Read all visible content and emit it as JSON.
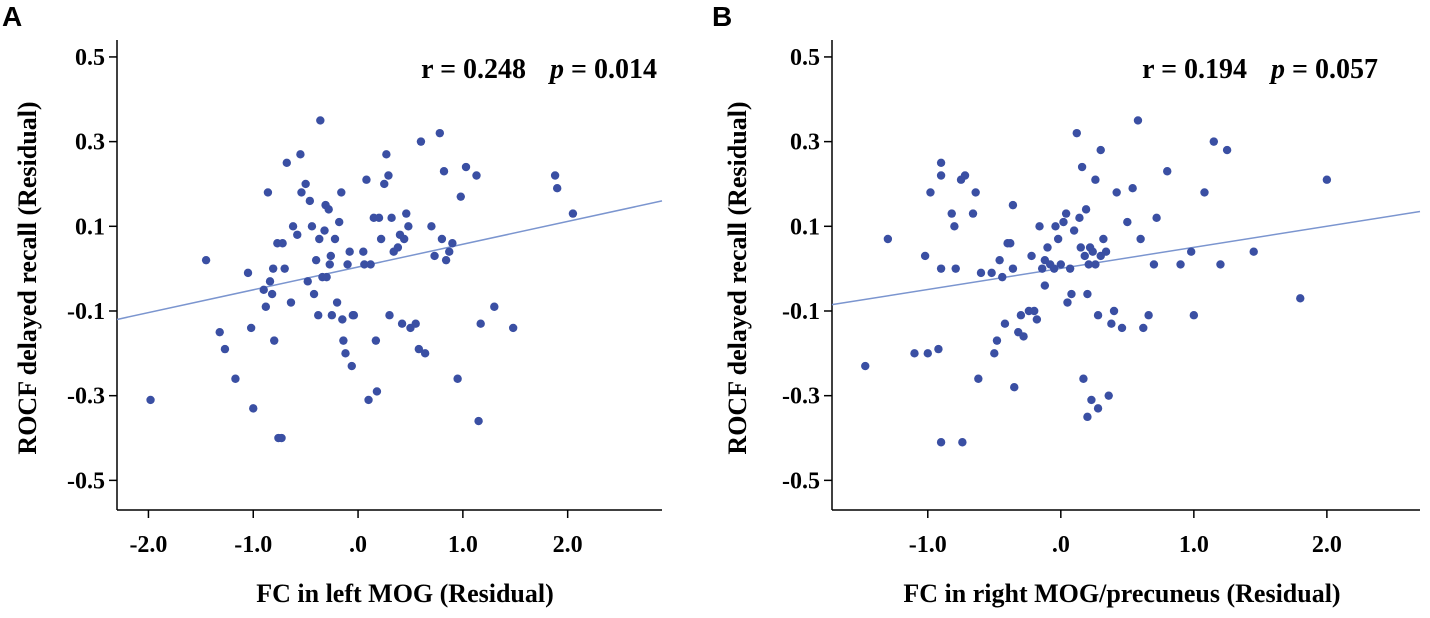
{
  "figure": {
    "panels": [
      {
        "letter": "A",
        "xlabel": "FC in left MOG (Residual)",
        "ylabel": "ROCF delayed recall (Residual)",
        "stat_r": "r = 0.248",
        "stat_p_symbol": "p",
        "stat_p_value": "= 0.014"
      },
      {
        "letter": "B",
        "xlabel": "FC in right MOG/precuneus (Residual)",
        "ylabel": "ROCF delayed recall (Residual)",
        "stat_r": "r = 0.194",
        "stat_p_symbol": "p",
        "stat_p_value": "= 0.057"
      }
    ]
  },
  "colors": {
    "point": "#3a4fa3",
    "fit_line": "#7b95cf",
    "axis": "#000000",
    "text": "#000000"
  },
  "chart_data": [
    {
      "type": "scatter",
      "title": "A",
      "xlabel": "FC in left MOG (Residual)",
      "ylabel": "ROCF delayed recall (Residual)",
      "xlim": [
        -2.3,
        2.9
      ],
      "ylim": [
        -0.57,
        0.54
      ],
      "xticks": [
        -2.0,
        -1.0,
        0.0,
        1.0,
        2.0
      ],
      "xtick_labels": [
        "-2.0",
        "-1.0",
        ".0",
        "1.0",
        "2.0"
      ],
      "yticks": [
        0.5,
        0.3,
        0.1,
        -0.1,
        -0.3,
        -0.5
      ],
      "ytick_labels": [
        "0.5",
        "0.3",
        "0.1",
        "-0.1",
        "-0.3",
        "-0.5"
      ],
      "annotation": "r = 0.248   p = 0.014",
      "fit_line": {
        "x": [
          -2.3,
          2.9
        ],
        "y": [
          -0.12,
          0.16
        ]
      },
      "points": [
        [
          -1.98,
          -0.31
        ],
        [
          -1.45,
          0.02
        ],
        [
          -1.32,
          -0.15
        ],
        [
          -1.27,
          -0.19
        ],
        [
          -1.17,
          -0.26
        ],
        [
          -1.05,
          -0.01
        ],
        [
          -1.02,
          -0.14
        ],
        [
          -1.0,
          -0.33
        ],
        [
          -0.9,
          -0.05
        ],
        [
          -0.88,
          -0.09
        ],
        [
          -0.86,
          0.18
        ],
        [
          -0.84,
          -0.03
        ],
        [
          -0.82,
          -0.06
        ],
        [
          -0.81,
          0.0
        ],
        [
          -0.8,
          -0.17
        ],
        [
          -0.77,
          0.06
        ],
        [
          -0.76,
          -0.4
        ],
        [
          -0.73,
          -0.4
        ],
        [
          -0.72,
          0.06
        ],
        [
          -0.7,
          0.0
        ],
        [
          -0.68,
          0.25
        ],
        [
          -0.64,
          -0.08
        ],
        [
          -0.62,
          0.1
        ],
        [
          -0.58,
          0.08
        ],
        [
          -0.55,
          0.27
        ],
        [
          -0.54,
          0.18
        ],
        [
          -0.5,
          0.2
        ],
        [
          -0.48,
          -0.03
        ],
        [
          -0.46,
          0.16
        ],
        [
          -0.44,
          0.1
        ],
        [
          -0.42,
          -0.06
        ],
        [
          -0.4,
          0.02
        ],
        [
          -0.38,
          -0.11
        ],
        [
          -0.37,
          0.07
        ],
        [
          -0.36,
          0.35
        ],
        [
          -0.34,
          -0.02
        ],
        [
          -0.32,
          0.09
        ],
        [
          -0.31,
          0.15
        ],
        [
          -0.3,
          -0.02
        ],
        [
          -0.28,
          0.14
        ],
        [
          -0.27,
          0.01
        ],
        [
          -0.26,
          0.03
        ],
        [
          -0.25,
          -0.11
        ],
        [
          -0.22,
          0.07
        ],
        [
          -0.2,
          -0.08
        ],
        [
          -0.18,
          0.11
        ],
        [
          -0.16,
          0.18
        ],
        [
          -0.15,
          -0.12
        ],
        [
          -0.14,
          -0.17
        ],
        [
          -0.12,
          -0.2
        ],
        [
          -0.1,
          0.01
        ],
        [
          -0.08,
          0.04
        ],
        [
          -0.06,
          -0.23
        ],
        [
          -0.05,
          -0.11
        ],
        [
          -0.04,
          -0.11
        ],
        [
          0.05,
          0.04
        ],
        [
          0.06,
          0.01
        ],
        [
          0.08,
          0.21
        ],
        [
          0.1,
          -0.31
        ],
        [
          0.12,
          0.01
        ],
        [
          0.15,
          0.12
        ],
        [
          0.17,
          -0.17
        ],
        [
          0.18,
          -0.29
        ],
        [
          0.2,
          0.12
        ],
        [
          0.22,
          0.07
        ],
        [
          0.25,
          0.2
        ],
        [
          0.27,
          0.27
        ],
        [
          0.29,
          0.22
        ],
        [
          0.3,
          -0.11
        ],
        [
          0.32,
          0.12
        ],
        [
          0.34,
          0.04
        ],
        [
          0.38,
          0.05
        ],
        [
          0.4,
          0.08
        ],
        [
          0.42,
          -0.13
        ],
        [
          0.44,
          0.07
        ],
        [
          0.46,
          0.13
        ],
        [
          0.48,
          0.1
        ],
        [
          0.5,
          -0.14
        ],
        [
          0.55,
          -0.13
        ],
        [
          0.58,
          -0.19
        ],
        [
          0.6,
          0.3
        ],
        [
          0.64,
          -0.2
        ],
        [
          0.7,
          0.1
        ],
        [
          0.73,
          0.03
        ],
        [
          0.78,
          0.32
        ],
        [
          0.8,
          0.07
        ],
        [
          0.82,
          0.23
        ],
        [
          0.84,
          0.02
        ],
        [
          0.87,
          0.04
        ],
        [
          0.9,
          0.06
        ],
        [
          0.95,
          -0.26
        ],
        [
          0.98,
          0.17
        ],
        [
          1.03,
          0.24
        ],
        [
          1.13,
          0.22
        ],
        [
          1.15,
          -0.36
        ],
        [
          1.17,
          -0.13
        ],
        [
          1.3,
          -0.09
        ],
        [
          1.48,
          -0.14
        ],
        [
          1.88,
          0.22
        ],
        [
          1.9,
          0.19
        ],
        [
          2.05,
          0.13
        ]
      ]
    },
    {
      "type": "scatter",
      "title": "B",
      "xlabel": "FC in right MOG/precuneus (Residual)",
      "ylabel": "ROCF delayed recall (Residual)",
      "xlim": [
        -1.72,
        2.7
      ],
      "ylim": [
        -0.57,
        0.54
      ],
      "xticks": [
        -1.0,
        0.0,
        1.0,
        2.0
      ],
      "xtick_labels": [
        "-1.0",
        ".0",
        "1.0",
        "2.0"
      ],
      "yticks": [
        0.5,
        0.3,
        0.1,
        -0.1,
        -0.3,
        -0.5
      ],
      "ytick_labels": [
        "0.5",
        "0.3",
        "0.1",
        "-0.1",
        "-0.3",
        "-0.5"
      ],
      "annotation": "r = 0.194   p = 0.057",
      "fit_line": {
        "x": [
          -1.72,
          2.7
        ],
        "y": [
          -0.085,
          0.135
        ]
      },
      "points": [
        [
          -1.47,
          -0.23
        ],
        [
          -1.3,
          0.07
        ],
        [
          -1.1,
          -0.2
        ],
        [
          -1.02,
          0.03
        ],
        [
          -1.0,
          -0.2
        ],
        [
          -0.98,
          0.18
        ],
        [
          -0.92,
          -0.19
        ],
        [
          -0.9,
          0.25
        ],
        [
          -0.9,
          0.22
        ],
        [
          -0.9,
          -0.41
        ],
        [
          -0.9,
          0.0
        ],
        [
          -0.82,
          0.13
        ],
        [
          -0.8,
          0.1
        ],
        [
          -0.79,
          0.0
        ],
        [
          -0.75,
          0.21
        ],
        [
          -0.74,
          -0.41
        ],
        [
          -0.72,
          0.22
        ],
        [
          -0.66,
          0.13
        ],
        [
          -0.64,
          0.18
        ],
        [
          -0.62,
          -0.26
        ],
        [
          -0.6,
          -0.01
        ],
        [
          -0.52,
          -0.01
        ],
        [
          -0.5,
          -0.2
        ],
        [
          -0.48,
          -0.17
        ],
        [
          -0.46,
          0.02
        ],
        [
          -0.44,
          -0.02
        ],
        [
          -0.42,
          -0.13
        ],
        [
          -0.4,
          0.06
        ],
        [
          -0.38,
          0.06
        ],
        [
          -0.36,
          0.15
        ],
        [
          -0.36,
          0.0
        ],
        [
          -0.35,
          -0.28
        ],
        [
          -0.32,
          -0.15
        ],
        [
          -0.3,
          -0.11
        ],
        [
          -0.28,
          -0.16
        ],
        [
          -0.24,
          -0.1
        ],
        [
          -0.22,
          0.03
        ],
        [
          -0.2,
          -0.1
        ],
        [
          -0.18,
          -0.12
        ],
        [
          -0.16,
          0.1
        ],
        [
          -0.14,
          0.0
        ],
        [
          -0.12,
          0.02
        ],
        [
          -0.1,
          0.05
        ],
        [
          -0.08,
          0.01
        ],
        [
          -0.05,
          0.0
        ],
        [
          -0.04,
          0.1
        ],
        [
          -0.02,
          0.07
        ],
        [
          0.0,
          0.01
        ],
        [
          0.02,
          0.11
        ],
        [
          0.04,
          0.13
        ],
        [
          0.05,
          -0.08
        ],
        [
          0.07,
          0.0
        ],
        [
          0.08,
          -0.06
        ],
        [
          0.1,
          0.09
        ],
        [
          0.12,
          0.32
        ],
        [
          0.14,
          0.12
        ],
        [
          0.15,
          0.05
        ],
        [
          0.16,
          0.24
        ],
        [
          0.17,
          -0.26
        ],
        [
          0.18,
          0.03
        ],
        [
          0.19,
          0.14
        ],
        [
          0.2,
          -0.06
        ],
        [
          0.21,
          0.01
        ],
        [
          0.22,
          0.05
        ],
        [
          0.23,
          -0.31
        ],
        [
          0.24,
          0.04
        ],
        [
          0.26,
          0.01
        ],
        [
          0.28,
          -0.11
        ],
        [
          0.3,
          0.28
        ],
        [
          0.32,
          0.07
        ],
        [
          0.34,
          0.04
        ],
        [
          0.36,
          -0.3
        ],
        [
          0.38,
          -0.13
        ],
        [
          0.4,
          -0.1
        ],
        [
          0.42,
          0.18
        ],
        [
          0.46,
          -0.14
        ],
        [
          0.5,
          0.11
        ],
        [
          0.54,
          0.19
        ],
        [
          0.58,
          0.35
        ],
        [
          0.6,
          0.07
        ],
        [
          0.62,
          -0.14
        ],
        [
          0.66,
          -0.11
        ],
        [
          0.7,
          0.01
        ],
        [
          0.72,
          0.12
        ],
        [
          0.8,
          0.23
        ],
        [
          0.9,
          0.01
        ],
        [
          0.98,
          0.04
        ],
        [
          1.0,
          -0.11
        ],
        [
          1.08,
          0.18
        ],
        [
          1.15,
          0.3
        ],
        [
          1.2,
          0.01
        ],
        [
          1.25,
          0.28
        ],
        [
          1.45,
          0.04
        ],
        [
          1.8,
          -0.07
        ],
        [
          2.0,
          0.21
        ],
        [
          0.26,
          0.21
        ],
        [
          0.2,
          -0.35
        ],
        [
          0.28,
          -0.33
        ],
        [
          0.3,
          0.03
        ],
        [
          -0.12,
          -0.04
        ]
      ]
    }
  ]
}
